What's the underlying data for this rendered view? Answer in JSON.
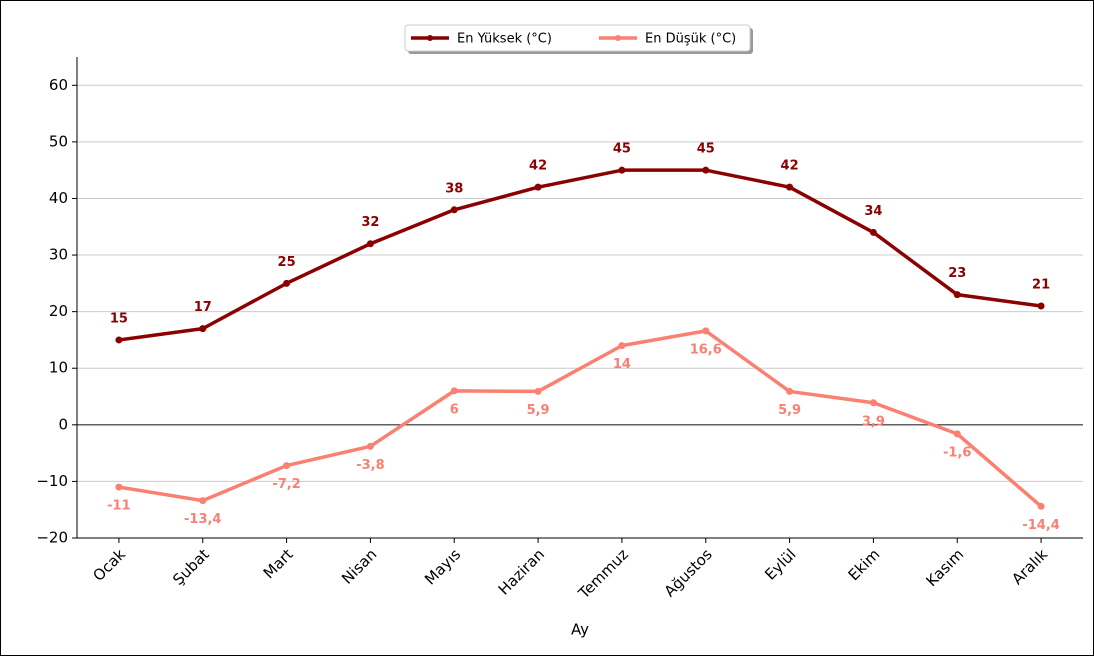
{
  "chart_data": {
    "type": "line",
    "x_label": "Ay",
    "categories": [
      "Ocak",
      "Şubat",
      "Mart",
      "Nisan",
      "Mayıs",
      "Haziran",
      "Temmuz",
      "Ağustos",
      "Eylül",
      "Ekim",
      "Kasım",
      "Aralık"
    ],
    "series": [
      {
        "name": "En Yüksek (°C)",
        "color": "#8b0000",
        "values": [
          15,
          17,
          25,
          32,
          38,
          42,
          45,
          45,
          42,
          34,
          23,
          21
        ]
      },
      {
        "name": "En Düşük (°C)",
        "color": "#fa8072",
        "values": [
          -11,
          -13.4,
          -7.2,
          -3.8,
          6,
          5.9,
          14,
          16.6,
          5.9,
          3.9,
          -1.6,
          -14.4
        ],
        "value_labels": [
          "-11",
          "-13,4",
          "-7,2",
          "-3,8",
          "6",
          "5,9",
          "14",
          "16,6",
          "5,9",
          "3,9",
          "-1,6",
          "-14,4"
        ]
      }
    ],
    "ylim": [
      -20,
      65
    ],
    "yticks": [
      {
        "value": -20,
        "label": "−20"
      },
      {
        "value": -10,
        "label": "−10"
      },
      0,
      10,
      20,
      30,
      40,
      50,
      60
    ],
    "grid": true,
    "legend": "upper center"
  }
}
